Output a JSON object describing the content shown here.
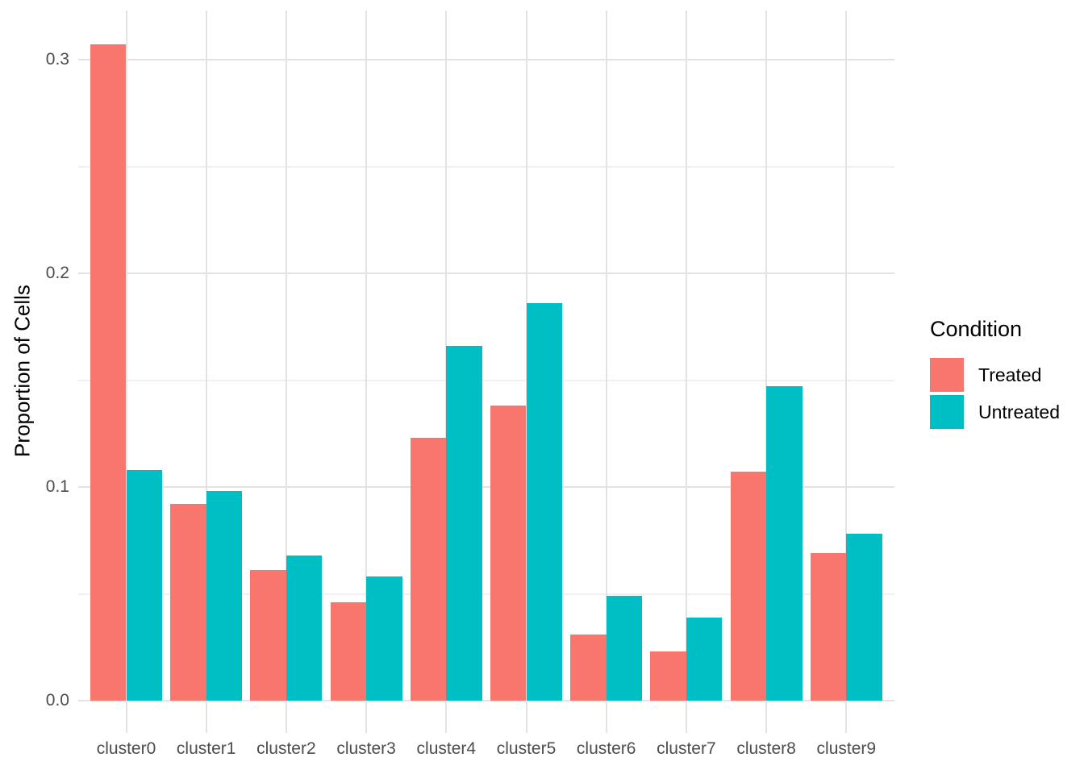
{
  "chart_data": {
    "type": "bar",
    "title": "",
    "xlabel": "",
    "ylabel": "Proportion of Cells",
    "categories": [
      "cluster0",
      "cluster1",
      "cluster2",
      "cluster3",
      "cluster4",
      "cluster5",
      "cluster6",
      "cluster7",
      "cluster8",
      "cluster9"
    ],
    "series": [
      {
        "name": "Treated",
        "color": "#F8766D",
        "values": [
          0.307,
          0.092,
          0.061,
          0.046,
          0.123,
          0.138,
          0.031,
          0.023,
          0.107,
          0.069
        ]
      },
      {
        "name": "Untreated",
        "color": "#00BFC4",
        "values": [
          0.108,
          0.098,
          0.068,
          0.058,
          0.166,
          0.186,
          0.049,
          0.039,
          0.147,
          0.078
        ]
      }
    ],
    "y_axis": {
      "tick_labels": [
        "0.0",
        "0.1",
        "0.2",
        "0.3"
      ],
      "tick_values": [
        0.0,
        0.1,
        0.2,
        0.3
      ],
      "minor_tick_values": [
        0.05,
        0.15,
        0.25
      ],
      "range": [
        -0.015,
        0.323
      ]
    },
    "legend": {
      "title": "Condition",
      "position": "right",
      "entries": [
        "Treated",
        "Untreated"
      ]
    },
    "grid": {
      "major_color": "#E3E3E3",
      "minor_color": "#F0F0F0",
      "background": "#FFFFFF"
    },
    "text_colors": {
      "tick_label": "#4D4D4D",
      "axis_title": "#000000",
      "legend_text": "#000000"
    }
  }
}
